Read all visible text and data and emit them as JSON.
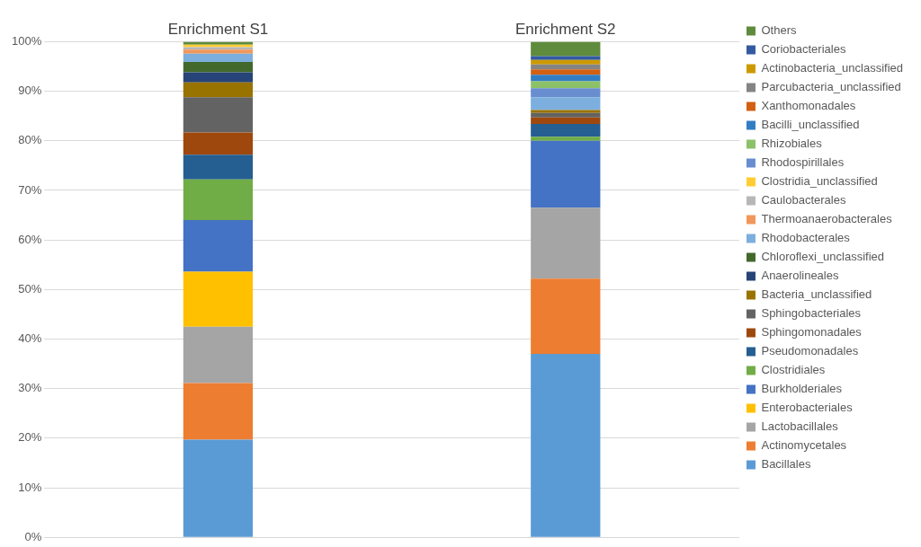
{
  "chart_data": {
    "type": "bar",
    "stacked": true,
    "categories": [
      "Enrichment S1",
      "Enrichment S2"
    ],
    "ylim": [
      0,
      100
    ],
    "yticks": [
      {
        "value": 0,
        "label": "0%"
      },
      {
        "value": 10,
        "label": "10%"
      },
      {
        "value": 20,
        "label": "20%"
      },
      {
        "value": 30,
        "label": "30%"
      },
      {
        "value": 40,
        "label": "40%"
      },
      {
        "value": 50,
        "label": "50%"
      },
      {
        "value": 60,
        "label": "60%"
      },
      {
        "value": 70,
        "label": "70%"
      },
      {
        "value": 80,
        "label": "80%"
      },
      {
        "value": 90,
        "label": "90%"
      },
      {
        "value": 100,
        "label": "100%"
      }
    ],
    "grid": "y",
    "legend": "right",
    "series": [
      {
        "name": "Bacillales",
        "color": "#5b9bd5",
        "values": [
          19.7,
          37.0
        ]
      },
      {
        "name": "Actinomycetales",
        "color": "#ed7d31",
        "values": [
          11.4,
          15.2
        ]
      },
      {
        "name": "Lactobacillales",
        "color": "#a5a5a5",
        "values": [
          11.4,
          14.3
        ]
      },
      {
        "name": "Enterobacteriales",
        "color": "#ffc000",
        "values": [
          11.1,
          0
        ]
      },
      {
        "name": "Burkholderiales",
        "color": "#4472c4",
        "values": [
          10.4,
          13.5
        ]
      },
      {
        "name": "Clostridiales",
        "color": "#70ad47",
        "values": [
          8.2,
          0.8
        ]
      },
      {
        "name": "Pseudomonadales",
        "color": "#255e91",
        "values": [
          5.0,
          2.6
        ]
      },
      {
        "name": "Sphingomonadales",
        "color": "#9e480e",
        "values": [
          4.5,
          1.3
        ]
      },
      {
        "name": "Sphingobacteriales",
        "color": "#636363",
        "values": [
          7.1,
          0.9
        ]
      },
      {
        "name": "Bacteria_unclassified",
        "color": "#997300",
        "values": [
          3.0,
          0.6
        ]
      },
      {
        "name": "Anaerolineales",
        "color": "#264478",
        "values": [
          2.0,
          0
        ]
      },
      {
        "name": "Chloroflexi_unclassified",
        "color": "#43682b",
        "values": [
          2.1,
          0
        ]
      },
      {
        "name": "Rhodobacterales",
        "color": "#7cafdd",
        "values": [
          1.7,
          2.6
        ]
      },
      {
        "name": "Thermoanaerobacterales",
        "color": "#f1975a",
        "values": [
          0.8,
          0
        ]
      },
      {
        "name": "Caulobacterales",
        "color": "#b7b7b7",
        "values": [
          0.5,
          0
        ]
      },
      {
        "name": "Clostridia_unclassified",
        "color": "#ffcd33",
        "values": [
          0.5,
          0
        ]
      },
      {
        "name": "Rhodospirillales",
        "color": "#698ed0",
        "values": [
          0,
          1.8
        ]
      },
      {
        "name": "Rhizobiales",
        "color": "#8cc168",
        "values": [
          0,
          1.4
        ]
      },
      {
        "name": "Bacilli_unclassified",
        "color": "#327dc2",
        "values": [
          0,
          1.3
        ]
      },
      {
        "name": "Xanthomonadales",
        "color": "#d26012",
        "values": [
          0,
          1.1
        ]
      },
      {
        "name": "Parcubacteria_unclassified",
        "color": "#848484",
        "values": [
          0,
          1.0
        ]
      },
      {
        "name": "Actinobacteria_unclassified",
        "color": "#cc9a00",
        "values": [
          0,
          0.9
        ]
      },
      {
        "name": "Coriobacteriales",
        "color": "#335aa1",
        "values": [
          0,
          0.8
        ]
      },
      {
        "name": "Others",
        "color": "#5f8b3c",
        "values": [
          0.6,
          2.9
        ]
      }
    ]
  }
}
